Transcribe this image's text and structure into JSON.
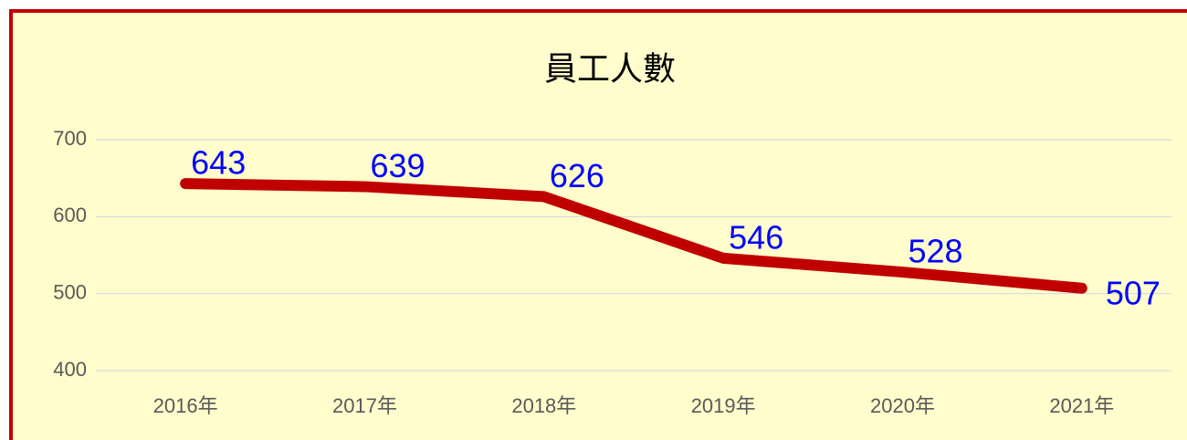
{
  "chart_data": {
    "type": "line",
    "title": "員工人數",
    "categories": [
      "2016年",
      "2017年",
      "2018年",
      "2019年",
      "2020年",
      "2021年"
    ],
    "series": [
      {
        "name": "員工人數",
        "color": "#c00000",
        "values": [
          643,
          639,
          626,
          546,
          528,
          507
        ]
      }
    ],
    "ylim": [
      400,
      700
    ],
    "yticks": [
      400,
      500,
      600,
      700
    ],
    "grid": true,
    "label_color": "#0000ff",
    "background": "#fffdcc",
    "border_color": "#c00000"
  }
}
